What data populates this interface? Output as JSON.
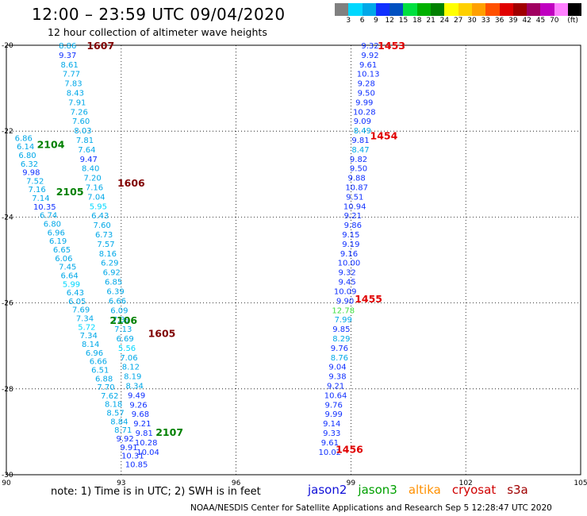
{
  "header": {
    "title": "12:00 – 23:59 UTC 09/04/2020",
    "subtitle": "12 hour collection of altimeter wave heights"
  },
  "colorbar": {
    "colors": [
      "#808080",
      "#00d8ff",
      "#00a8e8",
      "#1030ff",
      "#0050c0",
      "#00e040",
      "#00b000",
      "#008000",
      "#ffff00",
      "#ffd000",
      "#ffa000",
      "#ff5000",
      "#e00000",
      "#a00000",
      "#a00060",
      "#c000c0",
      "#ff80ff",
      "#000000"
    ],
    "labels": [
      "3",
      "6",
      "9",
      "12",
      "15",
      "18",
      "21",
      "24",
      "27",
      "30",
      "33",
      "36",
      "39",
      "42",
      "45",
      "70",
      "(ft)"
    ]
  },
  "chart_data": {
    "type": "scatter",
    "xlim": [
      90,
      105
    ],
    "ylim": [
      -30,
      -20
    ],
    "x_ticks": [
      "90",
      "93",
      "96",
      "99",
      "102",
      "105"
    ],
    "y_ticks": [
      "-20",
      "-22",
      "-24",
      "-26",
      "-28",
      "-30"
    ],
    "grid": true,
    "units": "SWH in feet",
    "legend": [
      {
        "name": "jason2",
        "color": "#1010d8"
      },
      {
        "name": "jason3",
        "color": "#00a000"
      },
      {
        "name": "altika",
        "color": "#ff9000"
      },
      {
        "name": "cryosat",
        "color": "#d00000"
      },
      {
        "name": "s3a",
        "color": "#a00000"
      }
    ],
    "pass_labels": [
      {
        "text": "1607",
        "lon": 92.1,
        "lat": -20.0,
        "color": "#800000"
      },
      {
        "text": "1606",
        "lon": 92.9,
        "lat": -23.2,
        "color": "#800000"
      },
      {
        "text": "1605",
        "lon": 93.7,
        "lat": -26.7,
        "color": "#800000"
      },
      {
        "text": "2104",
        "lon": 90.8,
        "lat": -22.3,
        "color": "#008000"
      },
      {
        "text": "2105",
        "lon": 91.3,
        "lat": -23.4,
        "color": "#008000"
      },
      {
        "text": "2106",
        "lon": 92.7,
        "lat": -26.4,
        "color": "#008000"
      },
      {
        "text": "2107",
        "lon": 93.9,
        "lat": -29.0,
        "color": "#008000"
      },
      {
        "text": "1453",
        "lon": 99.7,
        "lat": -20.0,
        "color": "#e00000"
      },
      {
        "text": "1454",
        "lon": 99.5,
        "lat": -22.1,
        "color": "#e00000"
      },
      {
        "text": "1455",
        "lon": 99.1,
        "lat": -25.9,
        "color": "#e00000"
      },
      {
        "text": "1456",
        "lon": 98.6,
        "lat": -29.4,
        "color": "#e00000"
      }
    ],
    "series": [
      {
        "name": "1607",
        "values": [
          {
            "lon": 91.6,
            "lat": -20.0,
            "v": "8.86",
            "c": "#00a8e8"
          },
          {
            "lon": 91.6,
            "lat": -20.22,
            "v": "9.37",
            "c": "#1030ff"
          },
          {
            "lon": 91.65,
            "lat": -20.44,
            "v": "8.61",
            "c": "#00a8e8"
          },
          {
            "lon": 91.7,
            "lat": -20.66,
            "v": "7.77",
            "c": "#00a8e8"
          },
          {
            "lon": 91.75,
            "lat": -20.88,
            "v": "7.83",
            "c": "#00a8e8"
          },
          {
            "lon": 91.8,
            "lat": -21.1,
            "v": "8.43",
            "c": "#00a8e8"
          },
          {
            "lon": 91.85,
            "lat": -21.32,
            "v": "7.91",
            "c": "#00a8e8"
          },
          {
            "lon": 91.9,
            "lat": -21.54,
            "v": "7.26",
            "c": "#00a8e8"
          },
          {
            "lon": 91.95,
            "lat": -21.76,
            "v": "7.60",
            "c": "#00a8e8"
          },
          {
            "lon": 92.0,
            "lat": -21.98,
            "v": "8.03",
            "c": "#00a8e8"
          },
          {
            "lon": 92.05,
            "lat": -22.2,
            "v": "7.81",
            "c": "#00a8e8"
          },
          {
            "lon": 92.1,
            "lat": -22.42,
            "v": "7.64",
            "c": "#00a8e8"
          },
          {
            "lon": 92.15,
            "lat": -22.64,
            "v": "9.47",
            "c": "#1030ff"
          },
          {
            "lon": 92.2,
            "lat": -22.86,
            "v": "8.40",
            "c": "#00a8e8"
          },
          {
            "lon": 92.25,
            "lat": -23.08,
            "v": "7.20",
            "c": "#00a8e8"
          },
          {
            "lon": 92.3,
            "lat": -23.3,
            "v": "7.16",
            "c": "#00a8e8"
          },
          {
            "lon": 92.35,
            "lat": -23.52,
            "v": "7.04",
            "c": "#00a8e8"
          },
          {
            "lon": 92.4,
            "lat": -23.74,
            "v": "5.95",
            "c": "#00d8ff"
          },
          {
            "lon": 92.45,
            "lat": -23.96,
            "v": "6.43",
            "c": "#00a8e8"
          },
          {
            "lon": 92.5,
            "lat": -24.18,
            "v": "7.60",
            "c": "#00a8e8"
          },
          {
            "lon": 92.55,
            "lat": -24.4,
            "v": "6.73",
            "c": "#00a8e8"
          },
          {
            "lon": 92.6,
            "lat": -24.62,
            "v": "7.57",
            "c": "#00a8e8"
          },
          {
            "lon": 92.65,
            "lat": -24.84,
            "v": "8.16",
            "c": "#00a8e8"
          },
          {
            "lon": 92.7,
            "lat": -25.06,
            "v": "6.29",
            "c": "#00a8e8"
          },
          {
            "lon": 92.75,
            "lat": -25.28,
            "v": "6.92",
            "c": "#00a8e8"
          },
          {
            "lon": 92.8,
            "lat": -25.5,
            "v": "6.85",
            "c": "#00a8e8"
          },
          {
            "lon": 92.85,
            "lat": -25.72,
            "v": "6.39",
            "c": "#00a8e8"
          },
          {
            "lon": 92.9,
            "lat": -25.94,
            "v": "6.66",
            "c": "#00a8e8"
          },
          {
            "lon": 92.95,
            "lat": -26.16,
            "v": "6.09",
            "c": "#00a8e8"
          },
          {
            "lon": 93.0,
            "lat": -26.38,
            "v": "7.39",
            "c": "#00a8e8"
          },
          {
            "lon": 93.05,
            "lat": -26.6,
            "v": "7.13",
            "c": "#00a8e8"
          },
          {
            "lon": 93.1,
            "lat": -26.82,
            "v": "6.69",
            "c": "#00a8e8"
          },
          {
            "lon": 93.15,
            "lat": -27.04,
            "v": "5.56",
            "c": "#00d8ff"
          },
          {
            "lon": 93.2,
            "lat": -27.26,
            "v": "7.06",
            "c": "#00a8e8"
          },
          {
            "lon": 93.25,
            "lat": -27.48,
            "v": "8.12",
            "c": "#00a8e8"
          },
          {
            "lon": 93.3,
            "lat": -27.7,
            "v": "8.19",
            "c": "#00a8e8"
          },
          {
            "lon": 93.35,
            "lat": -27.92,
            "v": "8.34",
            "c": "#00a8e8"
          },
          {
            "lon": 93.4,
            "lat": -28.14,
            "v": "9.49",
            "c": "#1030ff"
          },
          {
            "lon": 93.45,
            "lat": -28.36,
            "v": "9.26",
            "c": "#1030ff"
          },
          {
            "lon": 93.5,
            "lat": -28.58,
            "v": "9.68",
            "c": "#1030ff"
          },
          {
            "lon": 93.55,
            "lat": -28.8,
            "v": "9.21",
            "c": "#1030ff"
          },
          {
            "lon": 93.6,
            "lat": -29.02,
            "v": "9.81",
            "c": "#1030ff"
          },
          {
            "lon": 93.65,
            "lat": -29.24,
            "v": "10.28",
            "c": "#1030ff"
          },
          {
            "lon": 93.7,
            "lat": -29.46,
            "v": "10.04",
            "c": "#1030ff"
          }
        ]
      },
      {
        "name": "2104",
        "values": [
          {
            "lon": 90.45,
            "lat": -22.15,
            "v": "6.86",
            "c": "#00a8e8"
          },
          {
            "lon": 90.5,
            "lat": -22.35,
            "v": "6.14",
            "c": "#00a8e8"
          },
          {
            "lon": 90.55,
            "lat": -22.55,
            "v": "6.80",
            "c": "#00a8e8"
          },
          {
            "lon": 90.6,
            "lat": -22.75,
            "v": "6.32",
            "c": "#00a8e8"
          },
          {
            "lon": 90.65,
            "lat": -22.95,
            "v": "9.98",
            "c": "#1030ff"
          },
          {
            "lon": 90.75,
            "lat": -23.15,
            "v": "7.52",
            "c": "#00a8e8"
          },
          {
            "lon": 90.8,
            "lat": -23.35,
            "v": "7.16",
            "c": "#00a8e8"
          },
          {
            "lon": 90.9,
            "lat": -23.55,
            "v": "7.14",
            "c": "#00a8e8"
          },
          {
            "lon": 91.0,
            "lat": -23.75,
            "v": "10.35",
            "c": "#1030ff"
          },
          {
            "lon": 91.1,
            "lat": -23.95,
            "v": "6.74",
            "c": "#00a8e8"
          },
          {
            "lon": 91.2,
            "lat": -24.15,
            "v": "6.80",
            "c": "#00a8e8"
          },
          {
            "lon": 91.3,
            "lat": -24.35,
            "v": "6.96",
            "c": "#00a8e8"
          },
          {
            "lon": 91.35,
            "lat": -24.55,
            "v": "6.19",
            "c": "#00a8e8"
          },
          {
            "lon": 91.45,
            "lat": -24.75,
            "v": "6.65",
            "c": "#00a8e8"
          },
          {
            "lon": 91.5,
            "lat": -24.95,
            "v": "6.06",
            "c": "#00a8e8"
          },
          {
            "lon": 91.6,
            "lat": -25.15,
            "v": "7.45",
            "c": "#00a8e8"
          },
          {
            "lon": 91.65,
            "lat": -25.35,
            "v": "6.64",
            "c": "#00a8e8"
          },
          {
            "lon": 91.7,
            "lat": -25.55,
            "v": "5.99",
            "c": "#00d8ff"
          },
          {
            "lon": 91.8,
            "lat": -25.75,
            "v": "6.43",
            "c": "#00a8e8"
          },
          {
            "lon": 91.85,
            "lat": -25.95,
            "v": "6.05",
            "c": "#00a8e8"
          },
          {
            "lon": 91.95,
            "lat": -26.15,
            "v": "7.69",
            "c": "#00a8e8"
          },
          {
            "lon": 92.05,
            "lat": -26.35,
            "v": "7.34",
            "c": "#00a8e8"
          },
          {
            "lon": 92.1,
            "lat": -26.55,
            "v": "5.72",
            "c": "#00d8ff"
          },
          {
            "lon": 92.15,
            "lat": -26.75,
            "v": "7.34",
            "c": "#00a8e8"
          },
          {
            "lon": 92.2,
            "lat": -26.95,
            "v": "8.14",
            "c": "#00a8e8"
          },
          {
            "lon": 92.3,
            "lat": -27.15,
            "v": "6.96",
            "c": "#00a8e8"
          },
          {
            "lon": 92.4,
            "lat": -27.35,
            "v": "6.66",
            "c": "#00a8e8"
          },
          {
            "lon": 92.45,
            "lat": -27.55,
            "v": "6.51",
            "c": "#00a8e8"
          },
          {
            "lon": 92.55,
            "lat": -27.75,
            "v": "6.88",
            "c": "#00a8e8"
          },
          {
            "lon": 92.6,
            "lat": -27.95,
            "v": "7.70",
            "c": "#00a8e8"
          },
          {
            "lon": 92.7,
            "lat": -28.15,
            "v": "7.62",
            "c": "#00a8e8"
          },
          {
            "lon": 92.8,
            "lat": -28.35,
            "v": "8.18",
            "c": "#00a8e8"
          },
          {
            "lon": 92.85,
            "lat": -28.55,
            "v": "8.57",
            "c": "#00a8e8"
          },
          {
            "lon": 92.95,
            "lat": -28.75,
            "v": "8.84",
            "c": "#00a8e8"
          },
          {
            "lon": 93.05,
            "lat": -28.95,
            "v": "8.71",
            "c": "#00a8e8"
          },
          {
            "lon": 93.1,
            "lat": -29.15,
            "v": "9.92",
            "c": "#1030ff"
          },
          {
            "lon": 93.2,
            "lat": -29.35,
            "v": "9.91",
            "c": "#1030ff"
          },
          {
            "lon": 93.3,
            "lat": -29.55,
            "v": "10.31",
            "c": "#1030ff"
          },
          {
            "lon": 93.4,
            "lat": -29.75,
            "v": "10.85",
            "c": "#1030ff"
          }
        ]
      },
      {
        "name": "1453",
        "values": [
          {
            "lon": 99.5,
            "lat": -20.0,
            "v": "9.32",
            "c": "#1030ff"
          },
          {
            "lon": 99.5,
            "lat": -20.22,
            "v": "9.92",
            "c": "#1030ff"
          },
          {
            "lon": 99.45,
            "lat": -20.44,
            "v": "9.61",
            "c": "#1030ff"
          },
          {
            "lon": 99.45,
            "lat": -20.66,
            "v": "10.13",
            "c": "#1030ff"
          },
          {
            "lon": 99.4,
            "lat": -20.88,
            "v": "9.28",
            "c": "#1030ff"
          },
          {
            "lon": 99.4,
            "lat": -21.1,
            "v": "9.50",
            "c": "#1030ff"
          },
          {
            "lon": 99.35,
            "lat": -21.32,
            "v": "9.99",
            "c": "#1030ff"
          },
          {
            "lon": 99.35,
            "lat": -21.54,
            "v": "10.28",
            "c": "#1030ff"
          },
          {
            "lon": 99.3,
            "lat": -21.76,
            "v": "9.09",
            "c": "#1030ff"
          },
          {
            "lon": 99.3,
            "lat": -21.98,
            "v": "8.49",
            "c": "#00a8e8"
          },
          {
            "lon": 99.25,
            "lat": -22.2,
            "v": "9.81",
            "c": "#1030ff"
          },
          {
            "lon": 99.25,
            "lat": -22.42,
            "v": "8.47",
            "c": "#00a8e8"
          },
          {
            "lon": 99.2,
            "lat": -22.64,
            "v": "9.82",
            "c": "#1030ff"
          },
          {
            "lon": 99.2,
            "lat": -22.86,
            "v": "9.50",
            "c": "#1030ff"
          },
          {
            "lon": 99.15,
            "lat": -23.08,
            "v": "9.88",
            "c": "#1030ff"
          },
          {
            "lon": 99.15,
            "lat": -23.3,
            "v": "10.87",
            "c": "#1030ff"
          },
          {
            "lon": 99.1,
            "lat": -23.52,
            "v": "9.51",
            "c": "#1030ff"
          },
          {
            "lon": 99.1,
            "lat": -23.74,
            "v": "10.94",
            "c": "#1030ff"
          },
          {
            "lon": 99.05,
            "lat": -23.96,
            "v": "9.21",
            "c": "#1030ff"
          },
          {
            "lon": 99.05,
            "lat": -24.18,
            "v": "9.86",
            "c": "#1030ff"
          },
          {
            "lon": 99.0,
            "lat": -24.4,
            "v": "9.15",
            "c": "#1030ff"
          },
          {
            "lon": 99.0,
            "lat": -24.62,
            "v": "9.19",
            "c": "#1030ff"
          },
          {
            "lon": 98.95,
            "lat": -24.84,
            "v": "9.16",
            "c": "#1030ff"
          },
          {
            "lon": 98.95,
            "lat": -25.06,
            "v": "10.00",
            "c": "#1030ff"
          },
          {
            "lon": 98.9,
            "lat": -25.28,
            "v": "9.32",
            "c": "#1030ff"
          },
          {
            "lon": 98.9,
            "lat": -25.5,
            "v": "9.45",
            "c": "#1030ff"
          },
          {
            "lon": 98.85,
            "lat": -25.72,
            "v": "10.09",
            "c": "#1030ff"
          },
          {
            "lon": 98.85,
            "lat": -25.94,
            "v": "9.90",
            "c": "#1030ff"
          },
          {
            "lon": 98.8,
            "lat": -26.16,
            "v": "12.78",
            "c": "#40e040"
          },
          {
            "lon": 98.8,
            "lat": -26.38,
            "v": "7.99",
            "c": "#00a8e8"
          },
          {
            "lon": 98.75,
            "lat": -26.6,
            "v": "9.85",
            "c": "#1030ff"
          },
          {
            "lon": 98.75,
            "lat": -26.82,
            "v": "8.29",
            "c": "#00a8e8"
          },
          {
            "lon": 98.7,
            "lat": -27.04,
            "v": "9.76",
            "c": "#1030ff"
          },
          {
            "lon": 98.7,
            "lat": -27.26,
            "v": "8.76",
            "c": "#00a8e8"
          },
          {
            "lon": 98.65,
            "lat": -27.48,
            "v": "9.04",
            "c": "#1030ff"
          },
          {
            "lon": 98.65,
            "lat": -27.7,
            "v": "9.38",
            "c": "#1030ff"
          },
          {
            "lon": 98.6,
            "lat": -27.92,
            "v": "9.21",
            "c": "#1030ff"
          },
          {
            "lon": 98.6,
            "lat": -28.14,
            "v": "10.64",
            "c": "#1030ff"
          },
          {
            "lon": 98.55,
            "lat": -28.36,
            "v": "9.76",
            "c": "#1030ff"
          },
          {
            "lon": 98.55,
            "lat": -28.58,
            "v": "9.99",
            "c": "#1030ff"
          },
          {
            "lon": 98.5,
            "lat": -28.8,
            "v": "9.14",
            "c": "#1030ff"
          },
          {
            "lon": 98.5,
            "lat": -29.02,
            "v": "9.33",
            "c": "#1030ff"
          },
          {
            "lon": 98.45,
            "lat": -29.24,
            "v": "9.61",
            "c": "#1030ff"
          },
          {
            "lon": 98.45,
            "lat": -29.46,
            "v": "10.02",
            "c": "#1030ff"
          }
        ]
      }
    ]
  },
  "footer": {
    "note": "note: 1) Time is in UTC; 2) SWH is in feet",
    "credit": "NOAA/NESDIS Center for Satellite Applications and Research   Sep  5 12:28:47 UTC 2020"
  }
}
